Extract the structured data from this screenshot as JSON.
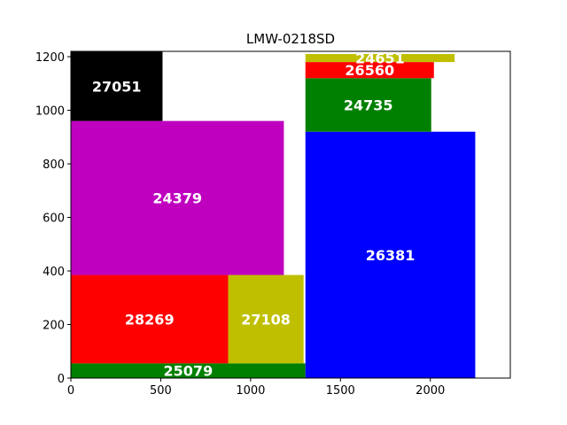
{
  "chart_data": {
    "type": "treemap-rectangles",
    "title": "LMW-0218SD",
    "xlabel": "",
    "ylabel": "",
    "xlim": [
      0,
      2445
    ],
    "ylim": [
      0,
      1220
    ],
    "x_ticks": [
      0,
      500,
      1000,
      1500,
      2000
    ],
    "y_ticks": [
      0,
      200,
      400,
      600,
      800,
      1000,
      1200
    ],
    "grid": false,
    "rectangles": [
      {
        "label": "25079",
        "x0": 0,
        "x1": 1305,
        "y0": 0,
        "y1": 55,
        "color": "#008000"
      },
      {
        "label": "28269",
        "x0": 0,
        "x1": 875,
        "y0": 55,
        "y1": 385,
        "color": "#ff0000"
      },
      {
        "label": "27108",
        "x0": 875,
        "x1": 1295,
        "y0": 55,
        "y1": 385,
        "color": "#bfbf00"
      },
      {
        "label": "24379",
        "x0": 0,
        "x1": 1185,
        "y0": 385,
        "y1": 960,
        "color": "#bf00bf"
      },
      {
        "label": "27051",
        "x0": 0,
        "x1": 510,
        "y0": 960,
        "y1": 1220,
        "color": "#000000"
      },
      {
        "label": "26381",
        "x0": 1305,
        "x1": 2250,
        "y0": 0,
        "y1": 920,
        "color": "#0000ff"
      },
      {
        "label": "24735",
        "x0": 1305,
        "x1": 2005,
        "y0": 920,
        "y1": 1120,
        "color": "#008000"
      },
      {
        "label": "26560",
        "x0": 1305,
        "x1": 2020,
        "y0": 1120,
        "y1": 1180,
        "color": "#ff0000"
      },
      {
        "label": "24651",
        "x0": 1305,
        "x1": 2135,
        "y0": 1180,
        "y1": 1210,
        "color": "#bfbf00"
      }
    ]
  }
}
